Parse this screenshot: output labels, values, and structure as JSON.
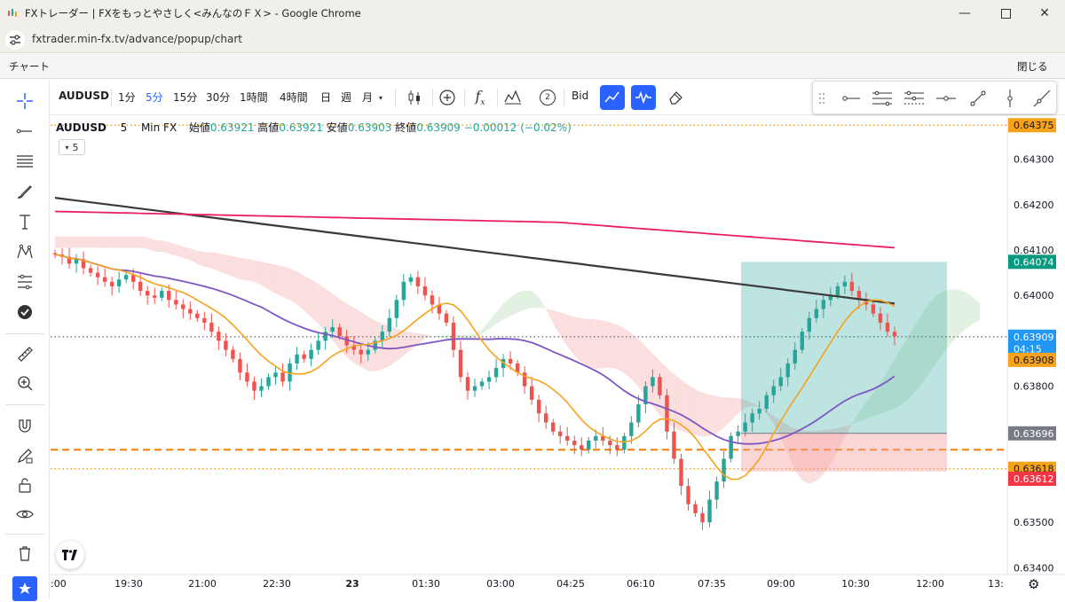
{
  "window": {
    "title": "FXトレーダー | FXをもっとやさしく<みんなのＦＸ> - Google Chrome",
    "url": "fxtrader.min-fx.tv/advance/popup/chart"
  },
  "app": {
    "title": "チャート",
    "close_label": "閉じる"
  },
  "toolbar": {
    "symbol": "AUDUSD",
    "intervals": [
      "1分",
      "5分",
      "15分",
      "30分",
      "1時間",
      "4時間",
      "日",
      "週",
      "月"
    ],
    "active_interval": "5分",
    "compare_count": "2",
    "bid_label": "Bid"
  },
  "legend": {
    "symbol": "AUDUSD",
    "interval": "5",
    "source": "Min FX",
    "open_label": "始値",
    "open": "0.63921",
    "high_label": "高値",
    "high": "0.63921",
    "low_label": "安値",
    "low": "0.63903",
    "close_label": "終値",
    "close": "0.63909",
    "change": "−0.00012",
    "change_pct": "(−0.02%)",
    "indicator_count": "5"
  },
  "colors": {
    "up": "#26a69a",
    "down": "#ef5350",
    "accent": "#2962ff",
    "ma_orange": "#f7a21b",
    "ma_purple": "#7e57c2",
    "ma_pink": "#e91e63",
    "ma_dark": "#3a3a3a",
    "cloud_bear": "#f8c9c9",
    "cloud_bull": "#cfe8cf",
    "tp_zone": "#26a69a",
    "sl_zone": "#f6a5a5"
  },
  "chart_data": {
    "type": "candlestick",
    "symbol": "AUDUSD",
    "interval": "5 Min",
    "x_ticks": [
      ":00",
      "19:30",
      "21:00",
      "22:30",
      "23",
      "01:30",
      "03:00",
      "04:25",
      "06:10",
      "07:35",
      "09:00",
      "10:30",
      "12:00",
      "13:"
    ],
    "y_ticks": [
      0.643,
      0.642,
      0.641,
      0.64,
      0.638,
      0.635,
      0.634
    ],
    "ylim": [
      0.63385,
      0.64395
    ],
    "price_labels": [
      {
        "value": "0.64375",
        "color": "#f7a21b"
      },
      {
        "value": "0.64074",
        "color": "#089981"
      },
      {
        "value": "0.63909",
        "color": "#2196f3"
      },
      {
        "value": "04:15",
        "color": "#2196f3"
      },
      {
        "value": "0.63908",
        "color": "#f7a21b"
      },
      {
        "value": "0.63696",
        "color": "#787b86"
      },
      {
        "value": "0.63618",
        "color": "#f7a21b"
      },
      {
        "value": "0.63612",
        "color": "#f23645"
      }
    ],
    "horizontal_lines": [
      {
        "price": 0.64375,
        "style": "dotted",
        "color": "#f7a21b"
      },
      {
        "price": 0.63618,
        "style": "dotted",
        "color": "#f7a21b"
      },
      {
        "price": 0.6366,
        "style": "dashed",
        "color": "#f57c00"
      },
      {
        "price": 0.63909,
        "style": "dotted",
        "color": "#787b86"
      }
    ],
    "close_path": [
      0.6409,
      0.64085,
      0.6407,
      0.6408,
      0.6406,
      0.6405,
      0.6404,
      0.6403,
      0.6402,
      0.64035,
      0.64045,
      0.6403,
      0.6401,
      0.64,
      0.63995,
      0.6401,
      0.6399,
      0.6398,
      0.6397,
      0.6396,
      0.6395,
      0.6394,
      0.6392,
      0.639,
      0.6388,
      0.6386,
      0.6383,
      0.6381,
      0.6379,
      0.638,
      0.6382,
      0.6383,
      0.6381,
      0.6385,
      0.6387,
      0.6386,
      0.6388,
      0.639,
      0.6392,
      0.6393,
      0.6391,
      0.6389,
      0.6388,
      0.6387,
      0.6388,
      0.639,
      0.6392,
      0.6395,
      0.6399,
      0.6403,
      0.6404,
      0.6402,
      0.64,
      0.6398,
      0.6396,
      0.6394,
      0.6388,
      0.6382,
      0.6379,
      0.638,
      0.6381,
      0.6382,
      0.6384,
      0.6386,
      0.6385,
      0.6383,
      0.638,
      0.6377,
      0.6374,
      0.6372,
      0.637,
      0.6369,
      0.6368,
      0.6367,
      0.6366,
      0.6368,
      0.6369,
      0.6368,
      0.6367,
      0.6366,
      0.6369,
      0.6372,
      0.6376,
      0.638,
      0.6382,
      0.6378,
      0.637,
      0.6364,
      0.6358,
      0.6354,
      0.6352,
      0.635,
      0.6355,
      0.6359,
      0.6364,
      0.6369,
      0.637,
      0.6372,
      0.6374,
      0.6375,
      0.6378,
      0.638,
      0.6382,
      0.6385,
      0.6388,
      0.6392,
      0.6395,
      0.6397,
      0.6399,
      0.64,
      0.6402,
      0.6403,
      0.6401,
      0.6399,
      0.6398,
      0.6396,
      0.6394,
      0.6392,
      0.6391
    ],
    "indicators": [
      {
        "name": "MA short",
        "color": "#f7a21b"
      },
      {
        "name": "MA mid",
        "color": "#7e57c2"
      },
      {
        "name": "MA long",
        "color": "#e91e63"
      },
      {
        "name": "MA longest",
        "color": "#3a3a3a"
      },
      {
        "name": "Ichimoku cloud",
        "color": "#f8c9c9"
      }
    ],
    "position": {
      "entry": 0.63696,
      "take_profit": 0.64074,
      "stop_loss": 0.63612,
      "x_start": "07:35",
      "x_end": "12:00"
    }
  }
}
